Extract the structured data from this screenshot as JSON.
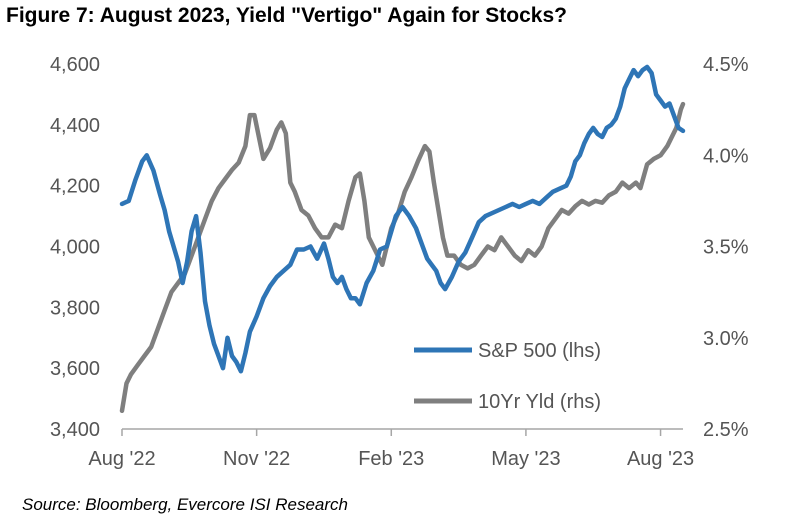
{
  "title": "Figure 7: August 2023, Yield \"Vertigo\" Again for Stocks?",
  "source": "Source: Bloomberg, Evercore ISI Research",
  "colors": {
    "sp500": "#2e75b6",
    "yield": "#7f7f7f",
    "axis": "#a6a6a6",
    "text": "#555555"
  },
  "chart_data": {
    "type": "line",
    "title": "Figure 7: August 2023, Yield \"Vertigo\" Again for Stocks?",
    "x_range": [
      0,
      12.5
    ],
    "x_ticks": [
      {
        "x": 0,
        "label": "Aug '22"
      },
      {
        "x": 3,
        "label": "Nov '22"
      },
      {
        "x": 6,
        "label": "Feb '23"
      },
      {
        "x": 9,
        "label": "May '23"
      },
      {
        "x": 12,
        "label": "Aug '23"
      }
    ],
    "y_left": {
      "min": 3400,
      "max": 4600,
      "ticks": [
        "3,400",
        "3,600",
        "3,800",
        "4,000",
        "4,200",
        "4,400",
        "4,600"
      ],
      "values": [
        3400,
        3600,
        3800,
        4000,
        4200,
        4400,
        4600
      ]
    },
    "y_right": {
      "min": 2.5,
      "max": 4.5,
      "ticks": [
        "2.5%",
        "3.0%",
        "3.5%",
        "4.0%",
        "4.5%"
      ],
      "values": [
        2.5,
        3.0,
        3.5,
        4.0,
        4.5
      ]
    },
    "legend": [
      {
        "name": "S&P 500 (lhs)",
        "key": "sp500"
      },
      {
        "name": "10Yr Yld (rhs)",
        "key": "yield"
      }
    ],
    "series": [
      {
        "name": "S&P 500 (lhs)",
        "axis": "left",
        "key": "sp500",
        "points": [
          [
            0,
            4140
          ],
          [
            0.15,
            4150
          ],
          [
            0.3,
            4220
          ],
          [
            0.45,
            4280
          ],
          [
            0.55,
            4300
          ],
          [
            0.7,
            4250
          ],
          [
            0.85,
            4170
          ],
          [
            0.95,
            4120
          ],
          [
            1.05,
            4050
          ],
          [
            1.15,
            4000
          ],
          [
            1.25,
            3950
          ],
          [
            1.35,
            3880
          ],
          [
            1.45,
            3950
          ],
          [
            1.55,
            4050
          ],
          [
            1.65,
            4100
          ],
          [
            1.75,
            3980
          ],
          [
            1.85,
            3820
          ],
          [
            1.95,
            3740
          ],
          [
            2.05,
            3680
          ],
          [
            2.15,
            3640
          ],
          [
            2.25,
            3600
          ],
          [
            2.35,
            3700
          ],
          [
            2.45,
            3640
          ],
          [
            2.55,
            3620
          ],
          [
            2.65,
            3590
          ],
          [
            2.75,
            3650
          ],
          [
            2.85,
            3720
          ],
          [
            3.0,
            3770
          ],
          [
            3.15,
            3830
          ],
          [
            3.3,
            3870
          ],
          [
            3.45,
            3900
          ],
          [
            3.6,
            3920
          ],
          [
            3.75,
            3940
          ],
          [
            3.9,
            3990
          ],
          [
            4.05,
            3990
          ],
          [
            4.2,
            4000
          ],
          [
            4.35,
            3960
          ],
          [
            4.5,
            4010
          ],
          [
            4.6,
            3960
          ],
          [
            4.7,
            3900
          ],
          [
            4.8,
            3880
          ],
          [
            4.9,
            3900
          ],
          [
            5.0,
            3860
          ],
          [
            5.1,
            3830
          ],
          [
            5.2,
            3830
          ],
          [
            5.3,
            3810
          ],
          [
            5.45,
            3880
          ],
          [
            5.6,
            3920
          ],
          [
            5.75,
            3990
          ],
          [
            5.9,
            4000
          ],
          [
            6.0,
            4050
          ],
          [
            6.1,
            4100
          ],
          [
            6.25,
            4130
          ],
          [
            6.4,
            4100
          ],
          [
            6.55,
            4060
          ],
          [
            6.7,
            4000
          ],
          [
            6.8,
            3960
          ],
          [
            6.9,
            3940
          ],
          [
            7.0,
            3920
          ],
          [
            7.1,
            3880
          ],
          [
            7.2,
            3860
          ],
          [
            7.35,
            3900
          ],
          [
            7.5,
            3950
          ],
          [
            7.65,
            3980
          ],
          [
            7.8,
            4030
          ],
          [
            7.95,
            4080
          ],
          [
            8.1,
            4100
          ],
          [
            8.25,
            4110
          ],
          [
            8.4,
            4120
          ],
          [
            8.55,
            4130
          ],
          [
            8.7,
            4140
          ],
          [
            8.85,
            4130
          ],
          [
            9.0,
            4140
          ],
          [
            9.15,
            4150
          ],
          [
            9.3,
            4140
          ],
          [
            9.45,
            4160
          ],
          [
            9.6,
            4180
          ],
          [
            9.75,
            4190
          ],
          [
            9.9,
            4200
          ],
          [
            10.0,
            4230
          ],
          [
            10.1,
            4280
          ],
          [
            10.2,
            4300
          ],
          [
            10.3,
            4340
          ],
          [
            10.4,
            4370
          ],
          [
            10.5,
            4390
          ],
          [
            10.6,
            4370
          ],
          [
            10.7,
            4360
          ],
          [
            10.8,
            4390
          ],
          [
            10.9,
            4400
          ],
          [
            11.0,
            4420
          ],
          [
            11.1,
            4460
          ],
          [
            11.2,
            4520
          ],
          [
            11.3,
            4550
          ],
          [
            11.4,
            4580
          ],
          [
            11.5,
            4560
          ],
          [
            11.6,
            4580
          ],
          [
            11.7,
            4590
          ],
          [
            11.8,
            4570
          ],
          [
            11.9,
            4500
          ],
          [
            12.0,
            4480
          ],
          [
            12.1,
            4460
          ],
          [
            12.2,
            4470
          ],
          [
            12.3,
            4430
          ],
          [
            12.4,
            4390
          ],
          [
            12.5,
            4380
          ]
        ]
      },
      {
        "name": "10Yr Yld (rhs)",
        "axis": "right",
        "key": "yield",
        "points": [
          [
            0,
            2.6
          ],
          [
            0.1,
            2.75
          ],
          [
            0.2,
            2.8
          ],
          [
            0.35,
            2.85
          ],
          [
            0.5,
            2.9
          ],
          [
            0.65,
            2.95
          ],
          [
            0.8,
            3.05
          ],
          [
            0.95,
            3.15
          ],
          [
            1.1,
            3.25
          ],
          [
            1.25,
            3.3
          ],
          [
            1.4,
            3.35
          ],
          [
            1.55,
            3.45
          ],
          [
            1.7,
            3.55
          ],
          [
            1.85,
            3.65
          ],
          [
            2.0,
            3.75
          ],
          [
            2.15,
            3.82
          ],
          [
            2.3,
            3.87
          ],
          [
            2.45,
            3.92
          ],
          [
            2.6,
            3.96
          ],
          [
            2.75,
            4.05
          ],
          [
            2.85,
            4.22
          ],
          [
            2.95,
            4.22
          ],
          [
            3.05,
            4.1
          ],
          [
            3.15,
            3.98
          ],
          [
            3.3,
            4.04
          ],
          [
            3.45,
            4.14
          ],
          [
            3.55,
            4.18
          ],
          [
            3.65,
            4.12
          ],
          [
            3.75,
            3.85
          ],
          [
            3.85,
            3.8
          ],
          [
            4.0,
            3.7
          ],
          [
            4.15,
            3.67
          ],
          [
            4.3,
            3.6
          ],
          [
            4.45,
            3.55
          ],
          [
            4.6,
            3.55
          ],
          [
            4.75,
            3.62
          ],
          [
            4.9,
            3.6
          ],
          [
            5.05,
            3.75
          ],
          [
            5.2,
            3.88
          ],
          [
            5.3,
            3.9
          ],
          [
            5.4,
            3.75
          ],
          [
            5.5,
            3.55
          ],
          [
            5.6,
            3.5
          ],
          [
            5.7,
            3.45
          ],
          [
            5.8,
            3.4
          ],
          [
            5.9,
            3.5
          ],
          [
            6.0,
            3.6
          ],
          [
            6.15,
            3.68
          ],
          [
            6.3,
            3.8
          ],
          [
            6.45,
            3.88
          ],
          [
            6.6,
            3.97
          ],
          [
            6.75,
            4.05
          ],
          [
            6.85,
            4.02
          ],
          [
            6.95,
            3.85
          ],
          [
            7.05,
            3.7
          ],
          [
            7.15,
            3.55
          ],
          [
            7.25,
            3.45
          ],
          [
            7.4,
            3.45
          ],
          [
            7.55,
            3.4
          ],
          [
            7.7,
            3.38
          ],
          [
            7.85,
            3.4
          ],
          [
            8.0,
            3.45
          ],
          [
            8.15,
            3.5
          ],
          [
            8.3,
            3.48
          ],
          [
            8.45,
            3.55
          ],
          [
            8.6,
            3.5
          ],
          [
            8.75,
            3.45
          ],
          [
            8.9,
            3.42
          ],
          [
            9.05,
            3.48
          ],
          [
            9.2,
            3.45
          ],
          [
            9.35,
            3.5
          ],
          [
            9.5,
            3.6
          ],
          [
            9.65,
            3.65
          ],
          [
            9.8,
            3.7
          ],
          [
            9.95,
            3.68
          ],
          [
            10.1,
            3.72
          ],
          [
            10.25,
            3.75
          ],
          [
            10.4,
            3.73
          ],
          [
            10.55,
            3.75
          ],
          [
            10.7,
            3.74
          ],
          [
            10.85,
            3.78
          ],
          [
            11.0,
            3.8
          ],
          [
            11.15,
            3.85
          ],
          [
            11.3,
            3.82
          ],
          [
            11.45,
            3.85
          ],
          [
            11.55,
            3.82
          ],
          [
            11.7,
            3.95
          ],
          [
            11.85,
            3.98
          ],
          [
            12.0,
            4.0
          ],
          [
            12.15,
            4.05
          ],
          [
            12.25,
            4.1
          ],
          [
            12.35,
            4.15
          ],
          [
            12.45,
            4.25
          ],
          [
            12.5,
            4.28
          ]
        ]
      }
    ],
    "xlabel": "",
    "ylabel": ""
  }
}
